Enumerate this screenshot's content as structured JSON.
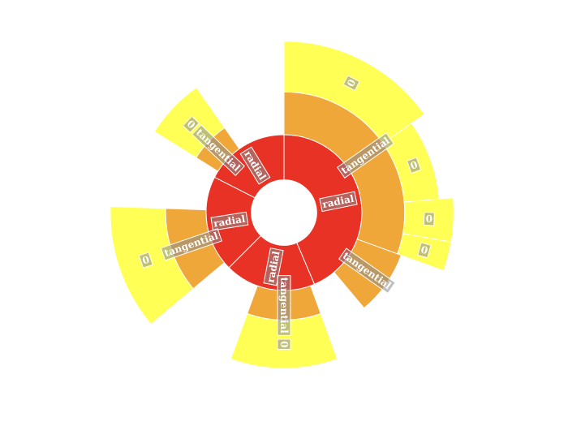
{
  "chart_data": {
    "type": "sunburst",
    "colors": {
      "level1": "#e83225",
      "level2": "#f0a73a",
      "level3": "#ffff55"
    },
    "nodes": [
      {
        "label": "radial",
        "angle_deg": [
          0,
          157
        ],
        "children": [
          {
            "label": "tangential",
            "angle_deg": [
              0,
              110
            ],
            "outer": 1.55,
            "children": [
              {
                "label": "0",
                "angle_deg": [
                  0,
                  55
                ],
                "outer": 2.2
              },
              {
                "label": "0",
                "angle_deg": [
                  55,
                  85
                ],
                "outer": 2.0
              },
              {
                "label": "0",
                "angle_deg": [
                  85,
                  100
                ],
                "outer": 2.18
              },
              {
                "label": "0",
                "angle_deg": [
                  100,
                  110
                ],
                "outer": 2.18
              }
            ]
          },
          {
            "label": "tangential",
            "angle_deg": [
              110,
              140
            ],
            "outer": 1.6,
            "children": []
          }
        ]
      },
      {
        "label": "radial",
        "angle_deg": [
          157,
          225
        ],
        "children": [
          {
            "label": "tangential",
            "angle_deg": [
              160,
              200
            ],
            "outer": 1.38,
            "children": [
              {
                "label": "0",
                "angle_deg": [
                  160,
                  200
                ],
                "outer": 2.0
              }
            ]
          }
        ]
      },
      {
        "label": "radial",
        "angle_deg": [
          225,
          297
        ],
        "children": [
          {
            "label": "tangential",
            "angle_deg": [
              230,
              272
            ],
            "outer": 1.52,
            "children": [
              {
                "label": "0",
                "angle_deg": [
                  230,
                  272
                ],
                "outer": 2.23
              }
            ]
          }
        ]
      },
      {
        "label": "radial",
        "angle_deg": [
          297,
          360
        ],
        "children": [
          {
            "label": "tangential",
            "angle_deg": [
              302,
              325
            ],
            "outer": 1.33,
            "children": [
              {
                "label": "0",
                "angle_deg": [
                  302,
                  325
                ],
                "outer": 1.96
              }
            ]
          }
        ]
      }
    ]
  }
}
